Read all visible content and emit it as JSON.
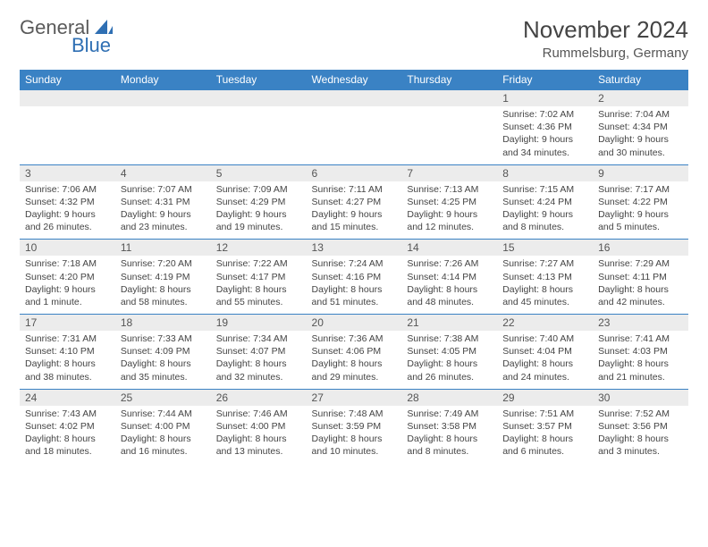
{
  "logo": {
    "text1": "General",
    "text2": "Blue"
  },
  "title": "November 2024",
  "subtitle": "Rummelsburg, Germany",
  "colors": {
    "header_bg": "#3a82c4",
    "header_fg": "#ffffff",
    "band_bg": "#ececec",
    "rule": "#3a82c4",
    "logo_blue": "#2f6fb3",
    "text": "#444444"
  },
  "day_headers": [
    "Sunday",
    "Monday",
    "Tuesday",
    "Wednesday",
    "Thursday",
    "Friday",
    "Saturday"
  ],
  "weeks": [
    [
      null,
      null,
      null,
      null,
      null,
      {
        "n": "1",
        "sr": "Sunrise: 7:02 AM",
        "ss": "Sunset: 4:36 PM",
        "d1": "Daylight: 9 hours",
        "d2": "and 34 minutes."
      },
      {
        "n": "2",
        "sr": "Sunrise: 7:04 AM",
        "ss": "Sunset: 4:34 PM",
        "d1": "Daylight: 9 hours",
        "d2": "and 30 minutes."
      }
    ],
    [
      {
        "n": "3",
        "sr": "Sunrise: 7:06 AM",
        "ss": "Sunset: 4:32 PM",
        "d1": "Daylight: 9 hours",
        "d2": "and 26 minutes."
      },
      {
        "n": "4",
        "sr": "Sunrise: 7:07 AM",
        "ss": "Sunset: 4:31 PM",
        "d1": "Daylight: 9 hours",
        "d2": "and 23 minutes."
      },
      {
        "n": "5",
        "sr": "Sunrise: 7:09 AM",
        "ss": "Sunset: 4:29 PM",
        "d1": "Daylight: 9 hours",
        "d2": "and 19 minutes."
      },
      {
        "n": "6",
        "sr": "Sunrise: 7:11 AM",
        "ss": "Sunset: 4:27 PM",
        "d1": "Daylight: 9 hours",
        "d2": "and 15 minutes."
      },
      {
        "n": "7",
        "sr": "Sunrise: 7:13 AM",
        "ss": "Sunset: 4:25 PM",
        "d1": "Daylight: 9 hours",
        "d2": "and 12 minutes."
      },
      {
        "n": "8",
        "sr": "Sunrise: 7:15 AM",
        "ss": "Sunset: 4:24 PM",
        "d1": "Daylight: 9 hours",
        "d2": "and 8 minutes."
      },
      {
        "n": "9",
        "sr": "Sunrise: 7:17 AM",
        "ss": "Sunset: 4:22 PM",
        "d1": "Daylight: 9 hours",
        "d2": "and 5 minutes."
      }
    ],
    [
      {
        "n": "10",
        "sr": "Sunrise: 7:18 AM",
        "ss": "Sunset: 4:20 PM",
        "d1": "Daylight: 9 hours",
        "d2": "and 1 minute."
      },
      {
        "n": "11",
        "sr": "Sunrise: 7:20 AM",
        "ss": "Sunset: 4:19 PM",
        "d1": "Daylight: 8 hours",
        "d2": "and 58 minutes."
      },
      {
        "n": "12",
        "sr": "Sunrise: 7:22 AM",
        "ss": "Sunset: 4:17 PM",
        "d1": "Daylight: 8 hours",
        "d2": "and 55 minutes."
      },
      {
        "n": "13",
        "sr": "Sunrise: 7:24 AM",
        "ss": "Sunset: 4:16 PM",
        "d1": "Daylight: 8 hours",
        "d2": "and 51 minutes."
      },
      {
        "n": "14",
        "sr": "Sunrise: 7:26 AM",
        "ss": "Sunset: 4:14 PM",
        "d1": "Daylight: 8 hours",
        "d2": "and 48 minutes."
      },
      {
        "n": "15",
        "sr": "Sunrise: 7:27 AM",
        "ss": "Sunset: 4:13 PM",
        "d1": "Daylight: 8 hours",
        "d2": "and 45 minutes."
      },
      {
        "n": "16",
        "sr": "Sunrise: 7:29 AM",
        "ss": "Sunset: 4:11 PM",
        "d1": "Daylight: 8 hours",
        "d2": "and 42 minutes."
      }
    ],
    [
      {
        "n": "17",
        "sr": "Sunrise: 7:31 AM",
        "ss": "Sunset: 4:10 PM",
        "d1": "Daylight: 8 hours",
        "d2": "and 38 minutes."
      },
      {
        "n": "18",
        "sr": "Sunrise: 7:33 AM",
        "ss": "Sunset: 4:09 PM",
        "d1": "Daylight: 8 hours",
        "d2": "and 35 minutes."
      },
      {
        "n": "19",
        "sr": "Sunrise: 7:34 AM",
        "ss": "Sunset: 4:07 PM",
        "d1": "Daylight: 8 hours",
        "d2": "and 32 minutes."
      },
      {
        "n": "20",
        "sr": "Sunrise: 7:36 AM",
        "ss": "Sunset: 4:06 PM",
        "d1": "Daylight: 8 hours",
        "d2": "and 29 minutes."
      },
      {
        "n": "21",
        "sr": "Sunrise: 7:38 AM",
        "ss": "Sunset: 4:05 PM",
        "d1": "Daylight: 8 hours",
        "d2": "and 26 minutes."
      },
      {
        "n": "22",
        "sr": "Sunrise: 7:40 AM",
        "ss": "Sunset: 4:04 PM",
        "d1": "Daylight: 8 hours",
        "d2": "and 24 minutes."
      },
      {
        "n": "23",
        "sr": "Sunrise: 7:41 AM",
        "ss": "Sunset: 4:03 PM",
        "d1": "Daylight: 8 hours",
        "d2": "and 21 minutes."
      }
    ],
    [
      {
        "n": "24",
        "sr": "Sunrise: 7:43 AM",
        "ss": "Sunset: 4:02 PM",
        "d1": "Daylight: 8 hours",
        "d2": "and 18 minutes."
      },
      {
        "n": "25",
        "sr": "Sunrise: 7:44 AM",
        "ss": "Sunset: 4:00 PM",
        "d1": "Daylight: 8 hours",
        "d2": "and 16 minutes."
      },
      {
        "n": "26",
        "sr": "Sunrise: 7:46 AM",
        "ss": "Sunset: 4:00 PM",
        "d1": "Daylight: 8 hours",
        "d2": "and 13 minutes."
      },
      {
        "n": "27",
        "sr": "Sunrise: 7:48 AM",
        "ss": "Sunset: 3:59 PM",
        "d1": "Daylight: 8 hours",
        "d2": "and 10 minutes."
      },
      {
        "n": "28",
        "sr": "Sunrise: 7:49 AM",
        "ss": "Sunset: 3:58 PM",
        "d1": "Daylight: 8 hours",
        "d2": "and 8 minutes."
      },
      {
        "n": "29",
        "sr": "Sunrise: 7:51 AM",
        "ss": "Sunset: 3:57 PM",
        "d1": "Daylight: 8 hours",
        "d2": "and 6 minutes."
      },
      {
        "n": "30",
        "sr": "Sunrise: 7:52 AM",
        "ss": "Sunset: 3:56 PM",
        "d1": "Daylight: 8 hours",
        "d2": "and 3 minutes."
      }
    ]
  ]
}
